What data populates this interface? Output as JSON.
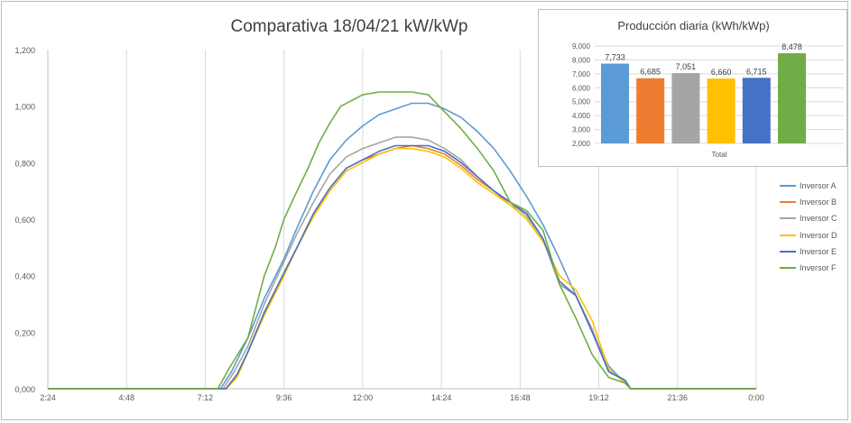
{
  "chart_data": [
    {
      "type": "line",
      "title": "Comparativa 18/04/21 kW/kWp",
      "xlabel": "",
      "ylabel": "",
      "ylim": [
        0,
        1.2
      ],
      "yticks": [
        "0,000",
        "0,200",
        "0,400",
        "0,600",
        "0,800",
        "1,000",
        "1,200"
      ],
      "xticks": [
        "2:24",
        "4:48",
        "7:12",
        "9:36",
        "12:00",
        "14:24",
        "16:48",
        "19:12",
        "21:36",
        "0:00"
      ],
      "xlim": [
        "2:24",
        "0:00"
      ],
      "grid": "vertical",
      "legend_position": "right",
      "series": [
        {
          "name": "Inversor A",
          "color": "#5b9bd5",
          "points": [
            [
              "2:24",
              0
            ],
            [
              "7:40",
              0
            ],
            [
              "8:00",
              0.06
            ],
            [
              "8:30",
              0.18
            ],
            [
              "9:00",
              0.32
            ],
            [
              "9:36",
              0.46
            ],
            [
              "10:00",
              0.57
            ],
            [
              "10:30",
              0.7
            ],
            [
              "11:00",
              0.81
            ],
            [
              "11:30",
              0.88
            ],
            [
              "12:00",
              0.93
            ],
            [
              "12:30",
              0.97
            ],
            [
              "13:00",
              0.99
            ],
            [
              "13:30",
              1.01
            ],
            [
              "14:00",
              1.01
            ],
            [
              "14:30",
              0.99
            ],
            [
              "15:00",
              0.96
            ],
            [
              "15:30",
              0.91
            ],
            [
              "16:00",
              0.85
            ],
            [
              "16:30",
              0.77
            ],
            [
              "17:00",
              0.68
            ],
            [
              "17:30",
              0.58
            ],
            [
              "18:00",
              0.46
            ],
            [
              "18:30",
              0.33
            ],
            [
              "19:00",
              0.2
            ],
            [
              "19:30",
              0.08
            ],
            [
              "20:00",
              0.02
            ],
            [
              "20:10",
              0
            ],
            [
              "0:00",
              0
            ]
          ]
        },
        {
          "name": "Inversor B",
          "color": "#ed7d31",
          "points": [
            [
              "2:24",
              0
            ],
            [
              "7:50",
              0
            ],
            [
              "8:10",
              0.05
            ],
            [
              "8:30",
              0.13
            ],
            [
              "9:00",
              0.27
            ],
            [
              "9:36",
              0.41
            ],
            [
              "10:00",
              0.5
            ],
            [
              "10:30",
              0.62
            ],
            [
              "11:00",
              0.71
            ],
            [
              "11:30",
              0.78
            ],
            [
              "12:00",
              0.81
            ],
            [
              "12:30",
              0.83
            ],
            [
              "13:00",
              0.85
            ],
            [
              "13:30",
              0.86
            ],
            [
              "14:00",
              0.85
            ],
            [
              "14:30",
              0.83
            ],
            [
              "15:00",
              0.79
            ],
            [
              "15:30",
              0.74
            ],
            [
              "16:00",
              0.7
            ],
            [
              "16:30",
              0.65
            ],
            [
              "17:00",
              0.62
            ],
            [
              "17:30",
              0.53
            ],
            [
              "18:00",
              0.37
            ],
            [
              "18:30",
              0.33
            ],
            [
              "19:00",
              0.21
            ],
            [
              "19:30",
              0.06
            ],
            [
              "20:00",
              0.03
            ],
            [
              "20:10",
              0
            ],
            [
              "0:00",
              0
            ]
          ]
        },
        {
          "name": "Inversor C",
          "color": "#a5a5a5",
          "points": [
            [
              "2:24",
              0
            ],
            [
              "7:45",
              0
            ],
            [
              "8:05",
              0.06
            ],
            [
              "8:30",
              0.15
            ],
            [
              "9:00",
              0.3
            ],
            [
              "9:36",
              0.45
            ],
            [
              "10:00",
              0.55
            ],
            [
              "10:30",
              0.66
            ],
            [
              "11:00",
              0.76
            ],
            [
              "11:30",
              0.82
            ],
            [
              "12:00",
              0.85
            ],
            [
              "12:30",
              0.87
            ],
            [
              "13:00",
              0.89
            ],
            [
              "13:30",
              0.89
            ],
            [
              "14:00",
              0.88
            ],
            [
              "14:30",
              0.85
            ],
            [
              "15:00",
              0.81
            ],
            [
              "15:30",
              0.75
            ],
            [
              "16:00",
              0.7
            ],
            [
              "16:30",
              0.66
            ],
            [
              "17:00",
              0.61
            ],
            [
              "17:30",
              0.53
            ],
            [
              "18:00",
              0.37
            ],
            [
              "18:30",
              0.33
            ],
            [
              "19:00",
              0.21
            ],
            [
              "19:30",
              0.06
            ],
            [
              "20:00",
              0.03
            ],
            [
              "20:10",
              0
            ],
            [
              "0:00",
              0
            ]
          ]
        },
        {
          "name": "Inversor D",
          "color": "#ffc000",
          "points": [
            [
              "2:24",
              0
            ],
            [
              "7:50",
              0
            ],
            [
              "8:10",
              0.04
            ],
            [
              "8:30",
              0.13
            ],
            [
              "9:00",
              0.26
            ],
            [
              "9:36",
              0.4
            ],
            [
              "10:00",
              0.5
            ],
            [
              "10:30",
              0.61
            ],
            [
              "11:00",
              0.7
            ],
            [
              "11:30",
              0.77
            ],
            [
              "12:00",
              0.8
            ],
            [
              "12:30",
              0.83
            ],
            [
              "13:00",
              0.85
            ],
            [
              "13:30",
              0.85
            ],
            [
              "14:00",
              0.84
            ],
            [
              "14:30",
              0.82
            ],
            [
              "15:00",
              0.78
            ],
            [
              "15:30",
              0.73
            ],
            [
              "16:00",
              0.69
            ],
            [
              "16:30",
              0.65
            ],
            [
              "17:00",
              0.6
            ],
            [
              "17:30",
              0.52
            ],
            [
              "18:00",
              0.4
            ],
            [
              "18:30",
              0.35
            ],
            [
              "19:00",
              0.24
            ],
            [
              "19:30",
              0.07
            ],
            [
              "20:00",
              0.02
            ],
            [
              "20:10",
              0
            ],
            [
              "0:00",
              0
            ]
          ]
        },
        {
          "name": "Inversor E",
          "color": "#4472c4",
          "points": [
            [
              "2:24",
              0
            ],
            [
              "7:50",
              0
            ],
            [
              "8:10",
              0.05
            ],
            [
              "8:30",
              0.13
            ],
            [
              "9:00",
              0.27
            ],
            [
              "9:36",
              0.41
            ],
            [
              "10:00",
              0.5
            ],
            [
              "10:30",
              0.62
            ],
            [
              "11:00",
              0.71
            ],
            [
              "11:30",
              0.78
            ],
            [
              "12:00",
              0.81
            ],
            [
              "12:30",
              0.84
            ],
            [
              "13:00",
              0.86
            ],
            [
              "13:30",
              0.86
            ],
            [
              "14:00",
              0.86
            ],
            [
              "14:30",
              0.84
            ],
            [
              "15:00",
              0.8
            ],
            [
              "15:30",
              0.75
            ],
            [
              "16:00",
              0.7
            ],
            [
              "16:30",
              0.66
            ],
            [
              "17:00",
              0.62
            ],
            [
              "17:30",
              0.53
            ],
            [
              "18:00",
              0.38
            ],
            [
              "18:30",
              0.33
            ],
            [
              "19:00",
              0.2
            ],
            [
              "19:30",
              0.06
            ],
            [
              "20:00",
              0.03
            ],
            [
              "20:10",
              0
            ],
            [
              "0:00",
              0
            ]
          ]
        },
        {
          "name": "Inversor F",
          "color": "#70ad47",
          "points": [
            [
              "2:24",
              0
            ],
            [
              "7:35",
              0
            ],
            [
              "7:55",
              0.07
            ],
            [
              "8:30",
              0.18
            ],
            [
              "9:00",
              0.4
            ],
            [
              "9:20",
              0.5
            ],
            [
              "9:36",
              0.6
            ],
            [
              "10:00",
              0.7
            ],
            [
              "10:20",
              0.78
            ],
            [
              "10:40",
              0.87
            ],
            [
              "11:00",
              0.94
            ],
            [
              "11:20",
              1.0
            ],
            [
              "11:40",
              1.02
            ],
            [
              "12:00",
              1.04
            ],
            [
              "12:30",
              1.05
            ],
            [
              "13:00",
              1.05
            ],
            [
              "13:30",
              1.05
            ],
            [
              "14:00",
              1.04
            ],
            [
              "14:30",
              0.98
            ],
            [
              "15:00",
              0.92
            ],
            [
              "15:30",
              0.85
            ],
            [
              "16:00",
              0.77
            ],
            [
              "16:30",
              0.66
            ],
            [
              "17:00",
              0.63
            ],
            [
              "17:30",
              0.56
            ],
            [
              "18:00",
              0.37
            ],
            [
              "18:30",
              0.25
            ],
            [
              "19:00",
              0.12
            ],
            [
              "19:30",
              0.04
            ],
            [
              "20:00",
              0.02
            ],
            [
              "20:10",
              0
            ],
            [
              "0:00",
              0
            ]
          ]
        }
      ]
    },
    {
      "type": "bar",
      "title": "Producción diaria  (kWh/kWp)",
      "categories": [
        "Total"
      ],
      "xlabel": "",
      "ylabel": "",
      "ylim": [
        2.0,
        9.0
      ],
      "yticks": [
        "2,000",
        "3,000",
        "4,000",
        "5,000",
        "6,000",
        "7,000",
        "8,000",
        "9,000"
      ],
      "series": [
        {
          "name": "Inversor A",
          "color": "#5b9bd5",
          "value": 7.733,
          "label": "7,733"
        },
        {
          "name": "Inversor B",
          "color": "#ed7d31",
          "value": 6.685,
          "label": "6,685"
        },
        {
          "name": "Inversor C",
          "color": "#a5a5a5",
          "value": 7.051,
          "label": "7,051"
        },
        {
          "name": "Inversor D",
          "color": "#ffc000",
          "value": 6.66,
          "label": "6,660"
        },
        {
          "name": "Inversor E",
          "color": "#4472c4",
          "value": 6.715,
          "label": "6,715"
        },
        {
          "name": "Inversor F",
          "color": "#70ad47",
          "value": 8.478,
          "label": "8,478"
        }
      ]
    }
  ]
}
